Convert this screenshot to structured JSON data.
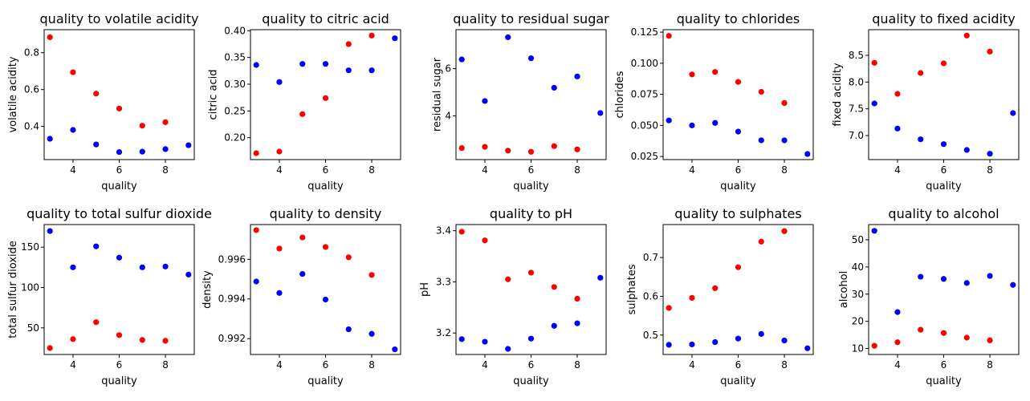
{
  "colors": {
    "red_series": "#ff0000",
    "blue_series": "#0000ff",
    "axes": "#000000",
    "background": "#ffffff"
  },
  "chart_data": [
    {
      "type": "scatter",
      "title": "quality to volatile acidity",
      "xlabel": "quality",
      "ylabel": "volatile acidity",
      "xlim": [
        2.75,
        9.25
      ],
      "ylim": [
        0.22,
        0.925
      ],
      "xticks": [
        {
          "v": 4,
          "label": "4"
        },
        {
          "v": 6,
          "label": "6"
        },
        {
          "v": 8,
          "label": "8"
        }
      ],
      "yticks": [
        {
          "v": 0.4,
          "label": "0.4"
        },
        {
          "v": 0.6,
          "label": "0.6"
        },
        {
          "v": 0.8,
          "label": "0.8"
        }
      ],
      "series": [
        {
          "color": "#ff0000",
          "x": [
            3,
            4,
            5,
            6,
            7,
            8
          ],
          "y": [
            0.884,
            0.694,
            0.578,
            0.497,
            0.404,
            0.423
          ]
        },
        {
          "color": "#0000ff",
          "x": [
            3,
            4,
            5,
            6,
            7,
            8,
            9
          ],
          "y": [
            0.333,
            0.381,
            0.302,
            0.261,
            0.263,
            0.277,
            0.298
          ]
        }
      ]
    },
    {
      "type": "scatter",
      "title": "quality to citric acid",
      "xlabel": "quality",
      "ylabel": "citric acid",
      "xlim": [
        2.75,
        9.25
      ],
      "ylim": [
        0.159,
        0.402
      ],
      "xticks": [
        {
          "v": 4,
          "label": "4"
        },
        {
          "v": 6,
          "label": "6"
        },
        {
          "v": 8,
          "label": "8"
        }
      ],
      "yticks": [
        {
          "v": 0.2,
          "label": "0.20"
        },
        {
          "v": 0.25,
          "label": "0.25"
        },
        {
          "v": 0.3,
          "label": "0.30"
        },
        {
          "v": 0.35,
          "label": "0.35"
        },
        {
          "v": 0.4,
          "label": "0.40"
        }
      ],
      "series": [
        {
          "color": "#ff0000",
          "x": [
            3,
            4,
            5,
            6,
            7,
            8
          ],
          "y": [
            0.171,
            0.174,
            0.244,
            0.274,
            0.375,
            0.391
          ]
        },
        {
          "color": "#0000ff",
          "x": [
            3,
            4,
            5,
            6,
            7,
            8,
            9
          ],
          "y": [
            0.336,
            0.304,
            0.338,
            0.338,
            0.326,
            0.326,
            0.386
          ]
        }
      ]
    },
    {
      "type": "scatter",
      "title": "quality to residual sugar",
      "xlabel": "quality",
      "ylabel": "residual sugar",
      "xlim": [
        2.75,
        9.25
      ],
      "ylim": [
        2.15,
        7.65
      ],
      "xticks": [
        {
          "v": 4,
          "label": "4"
        },
        {
          "v": 6,
          "label": "6"
        },
        {
          "v": 8,
          "label": "8"
        }
      ],
      "yticks": [
        {
          "v": 4,
          "label": "4"
        },
        {
          "v": 6,
          "label": "6"
        }
      ],
      "series": [
        {
          "color": "#ff0000",
          "x": [
            3,
            4,
            5,
            6,
            7,
            8
          ],
          "y": [
            2.64,
            2.69,
            2.53,
            2.48,
            2.72,
            2.58
          ]
        },
        {
          "color": "#0000ff",
          "x": [
            3,
            4,
            5,
            6,
            7,
            8,
            9
          ],
          "y": [
            6.39,
            4.63,
            7.33,
            6.44,
            5.19,
            5.67,
            4.12
          ]
        }
      ]
    },
    {
      "type": "scatter",
      "title": "quality to chlorides",
      "xlabel": "quality",
      "ylabel": "chlorides",
      "xlim": [
        2.75,
        9.25
      ],
      "ylim": [
        0.0225,
        0.127
      ],
      "xticks": [
        {
          "v": 4,
          "label": "4"
        },
        {
          "v": 6,
          "label": "6"
        },
        {
          "v": 8,
          "label": "8"
        }
      ],
      "yticks": [
        {
          "v": 0.025,
          "label": "0.025"
        },
        {
          "v": 0.05,
          "label": "0.050"
        },
        {
          "v": 0.075,
          "label": "0.075"
        },
        {
          "v": 0.1,
          "label": "0.100"
        },
        {
          "v": 0.125,
          "label": "0.125"
        }
      ],
      "series": [
        {
          "color": "#ff0000",
          "x": [
            3,
            4,
            5,
            6,
            7,
            8
          ],
          "y": [
            0.122,
            0.091,
            0.093,
            0.085,
            0.077,
            0.068
          ]
        },
        {
          "color": "#0000ff",
          "x": [
            3,
            4,
            5,
            6,
            7,
            8,
            9
          ],
          "y": [
            0.054,
            0.05,
            0.052,
            0.045,
            0.038,
            0.038,
            0.027
          ]
        }
      ]
    },
    {
      "type": "scatter",
      "title": "quality to fixed acidity",
      "xlabel": "quality",
      "ylabel": "fixed acidity",
      "xlim": [
        2.75,
        9.25
      ],
      "ylim": [
        6.55,
        8.98
      ],
      "xticks": [
        {
          "v": 4,
          "label": "4"
        },
        {
          "v": 6,
          "label": "6"
        },
        {
          "v": 8,
          "label": "8"
        }
      ],
      "yticks": [
        {
          "v": 7.0,
          "label": "7.0"
        },
        {
          "v": 7.5,
          "label": "7.5"
        },
        {
          "v": 8.0,
          "label": "8.0"
        },
        {
          "v": 8.5,
          "label": "8.5"
        }
      ],
      "series": [
        {
          "color": "#ff0000",
          "x": [
            3,
            4,
            5,
            6,
            7,
            8
          ],
          "y": [
            8.36,
            7.78,
            8.17,
            8.35,
            8.87,
            8.57
          ]
        },
        {
          "color": "#0000ff",
          "x": [
            3,
            4,
            5,
            6,
            7,
            8,
            9
          ],
          "y": [
            7.6,
            7.13,
            6.93,
            6.84,
            6.73,
            6.66,
            7.42
          ]
        }
      ]
    },
    {
      "type": "scatter",
      "title": "quality to total sulfur dioxide",
      "xlabel": "quality",
      "ylabel": "total sulfur dioxide",
      "xlim": [
        2.75,
        9.25
      ],
      "ylim": [
        17,
        178
      ],
      "xticks": [
        {
          "v": 4,
          "label": "4"
        },
        {
          "v": 6,
          "label": "6"
        },
        {
          "v": 8,
          "label": "8"
        }
      ],
      "yticks": [
        {
          "v": 50,
          "label": "50"
        },
        {
          "v": 100,
          "label": "100"
        },
        {
          "v": 150,
          "label": "150"
        }
      ],
      "series": [
        {
          "color": "#ff0000",
          "x": [
            3,
            4,
            5,
            6,
            7,
            8
          ],
          "y": [
            25,
            36,
            57,
            41,
            35,
            34
          ]
        },
        {
          "color": "#0000ff",
          "x": [
            3,
            4,
            5,
            6,
            7,
            8,
            9
          ],
          "y": [
            170,
            125,
            151,
            137,
            125,
            126,
            116
          ]
        }
      ]
    },
    {
      "type": "scatter",
      "title": "quality to density",
      "xlabel": "quality",
      "ylabel": "density",
      "xlim": [
        2.75,
        9.25
      ],
      "ylim": [
        0.9912,
        0.99775
      ],
      "xticks": [
        {
          "v": 4,
          "label": "4"
        },
        {
          "v": 6,
          "label": "6"
        },
        {
          "v": 8,
          "label": "8"
        }
      ],
      "yticks": [
        {
          "v": 0.992,
          "label": "0.992"
        },
        {
          "v": 0.994,
          "label": "0.994"
        },
        {
          "v": 0.996,
          "label": "0.996"
        }
      ],
      "series": [
        {
          "color": "#ff0000",
          "x": [
            3,
            4,
            5,
            6,
            7,
            8
          ],
          "y": [
            0.99747,
            0.99654,
            0.9971,
            0.99662,
            0.9961,
            0.99521
          ]
        },
        {
          "color": "#0000ff",
          "x": [
            3,
            4,
            5,
            6,
            7,
            8,
            9
          ],
          "y": [
            0.99488,
            0.9943,
            0.99526,
            0.99397,
            0.99247,
            0.99224,
            0.99146
          ]
        }
      ]
    },
    {
      "type": "scatter",
      "title": "quality to pH",
      "xlabel": "quality",
      "ylabel": "pH",
      "xlim": [
        2.75,
        9.25
      ],
      "ylim": [
        3.158,
        3.412
      ],
      "xticks": [
        {
          "v": 4,
          "label": "4"
        },
        {
          "v": 6,
          "label": "6"
        },
        {
          "v": 8,
          "label": "8"
        }
      ],
      "yticks": [
        {
          "v": 3.2,
          "label": "3.2"
        },
        {
          "v": 3.3,
          "label": "3.3"
        },
        {
          "v": 3.4,
          "label": "3.4"
        }
      ],
      "series": [
        {
          "color": "#ff0000",
          "x": [
            3,
            4,
            5,
            6,
            7,
            8
          ],
          "y": [
            3.398,
            3.381,
            3.305,
            3.318,
            3.29,
            3.267
          ]
        },
        {
          "color": "#0000ff",
          "x": [
            3,
            4,
            5,
            6,
            7,
            8,
            9
          ],
          "y": [
            3.188,
            3.183,
            3.169,
            3.189,
            3.214,
            3.219,
            3.308
          ]
        }
      ]
    },
    {
      "type": "scatter",
      "title": "quality to sulphates",
      "xlabel": "quality",
      "ylabel": "sulphates",
      "xlim": [
        2.75,
        9.25
      ],
      "ylim": [
        0.45,
        0.785
      ],
      "xticks": [
        {
          "v": 4,
          "label": "4"
        },
        {
          "v": 6,
          "label": "6"
        },
        {
          "v": 8,
          "label": "8"
        }
      ],
      "yticks": [
        {
          "v": 0.5,
          "label": "0.5"
        },
        {
          "v": 0.6,
          "label": "0.6"
        },
        {
          "v": 0.7,
          "label": "0.7"
        }
      ],
      "series": [
        {
          "color": "#ff0000",
          "x": [
            3,
            4,
            5,
            6,
            7,
            8
          ],
          "y": [
            0.57,
            0.596,
            0.621,
            0.675,
            0.741,
            0.768
          ]
        },
        {
          "color": "#0000ff",
          "x": [
            3,
            4,
            5,
            6,
            7,
            8,
            9
          ],
          "y": [
            0.475,
            0.476,
            0.482,
            0.491,
            0.503,
            0.486,
            0.466
          ]
        }
      ]
    },
    {
      "type": "scatter",
      "title": "quality to alcohol",
      "xlabel": "quality",
      "ylabel": "alcohol",
      "xlim": [
        2.75,
        9.25
      ],
      "ylim": [
        7.8,
        55.6
      ],
      "xticks": [
        {
          "v": 4,
          "label": "4"
        },
        {
          "v": 6,
          "label": "6"
        },
        {
          "v": 8,
          "label": "8"
        }
      ],
      "yticks": [
        {
          "v": 10,
          "label": "10"
        },
        {
          "v": 20,
          "label": "20"
        },
        {
          "v": 30,
          "label": "30"
        },
        {
          "v": 40,
          "label": "40"
        },
        {
          "v": 50,
          "label": "50"
        }
      ],
      "series": [
        {
          "color": "#ff0000",
          "x": [
            3,
            4,
            5,
            6,
            7,
            8
          ],
          "y": [
            11.0,
            12.3,
            16.9,
            15.7,
            14.0,
            13.0
          ]
        },
        {
          "color": "#0000ff",
          "x": [
            3,
            4,
            5,
            6,
            7,
            8,
            9
          ],
          "y": [
            53.3,
            23.4,
            36.4,
            35.6,
            34.1,
            36.7,
            33.4
          ]
        }
      ]
    }
  ]
}
